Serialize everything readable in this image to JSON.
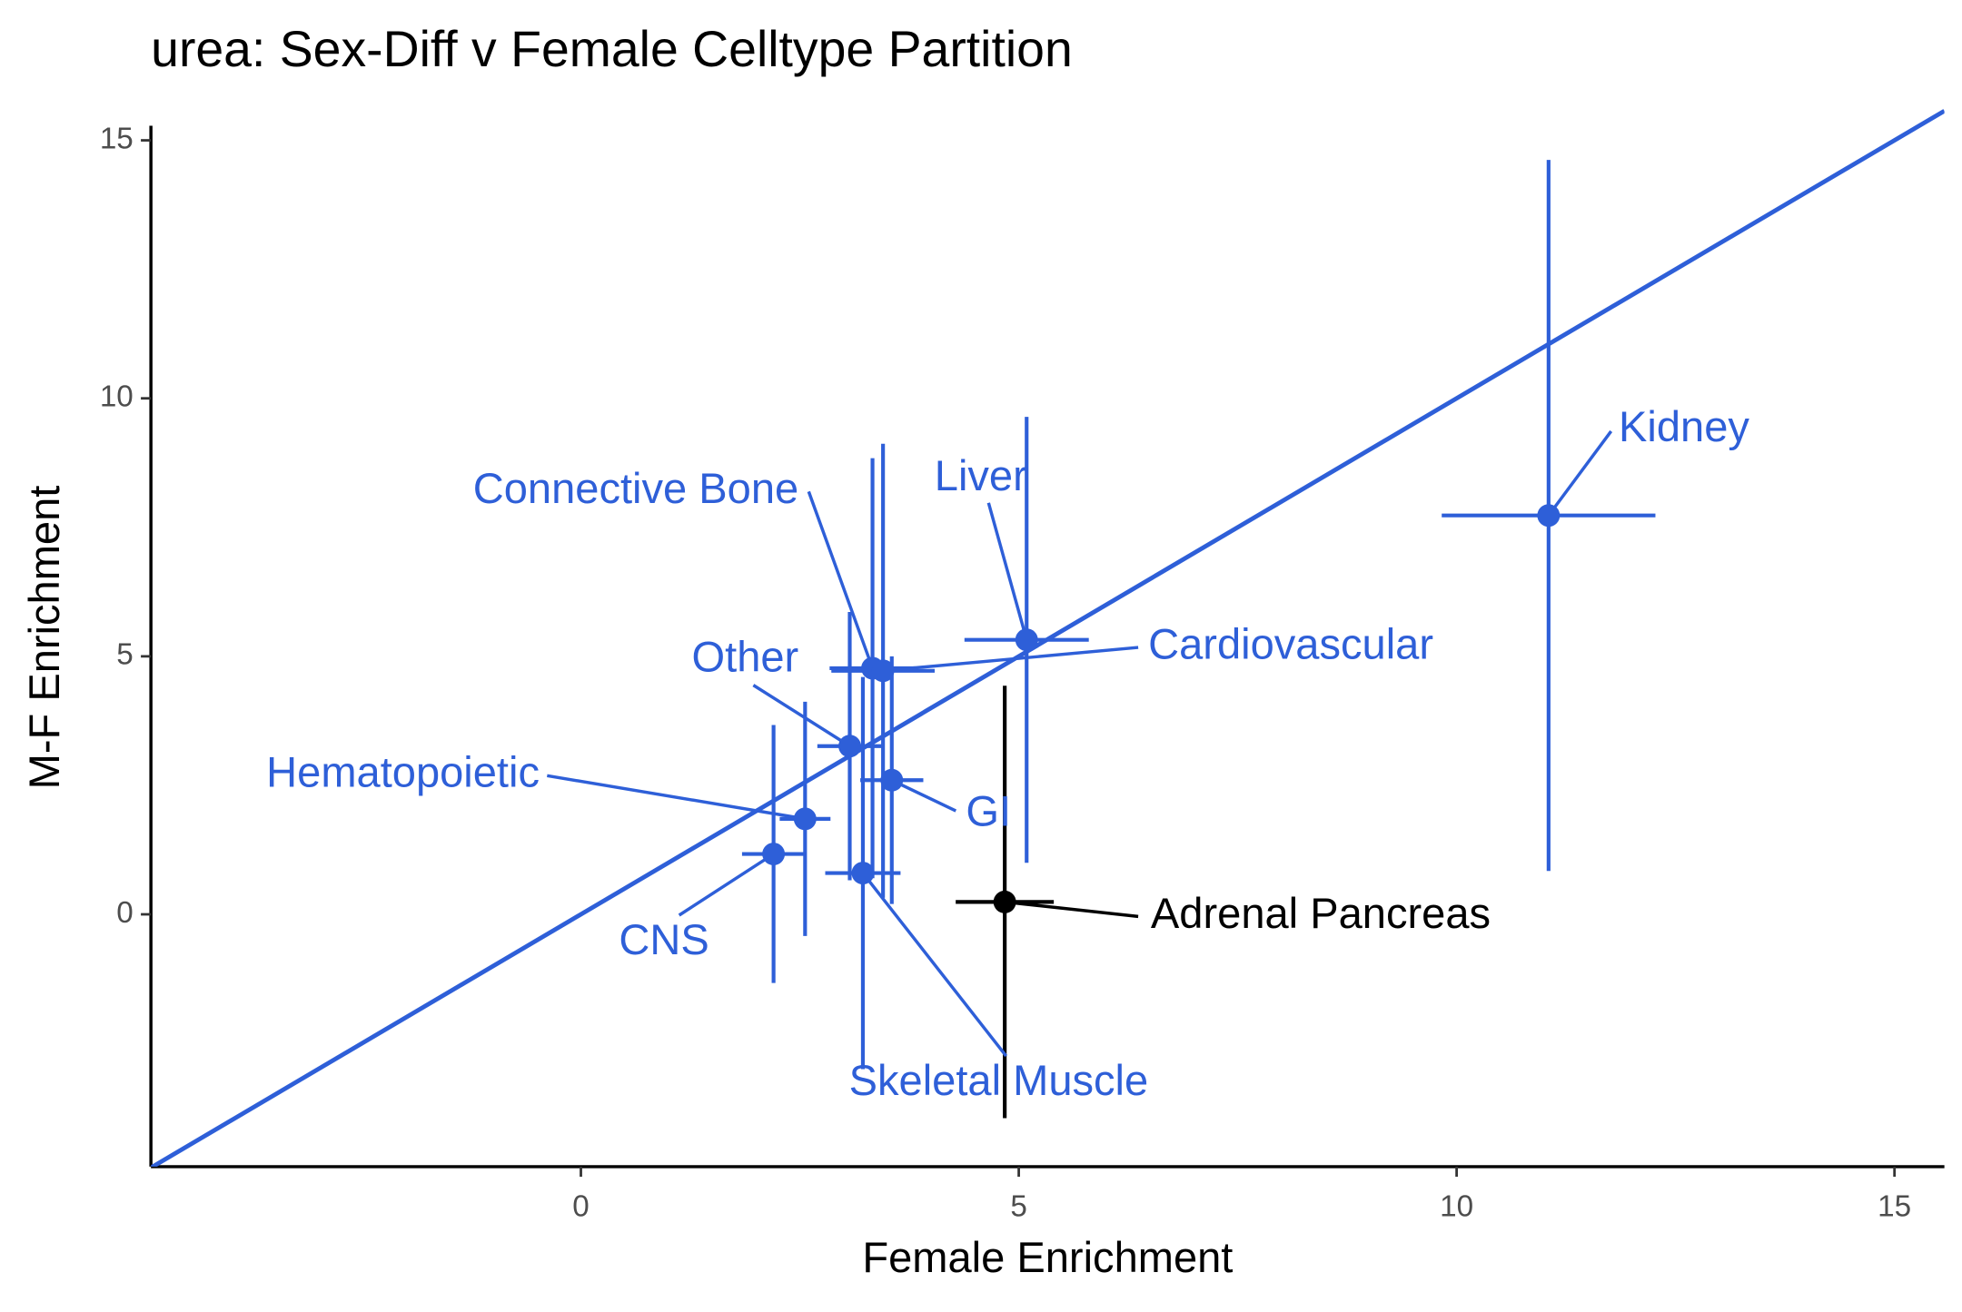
{
  "chart_data": {
    "type": "scatter",
    "title": "urea: Sex-Diff v Female Celltype Partition",
    "x_label": "Female Enrichment",
    "y_label": "M-F Enrichment",
    "xlim": [
      -4.91,
      15.57
    ],
    "ylim": [
      -4.89,
      15.6
    ],
    "xticks": [
      0,
      5,
      10,
      15
    ],
    "yticks": [
      0,
      5,
      10,
      15
    ],
    "reference_line": {
      "slope": 1,
      "intercept": 0,
      "color": "#2e5fd8"
    },
    "points": [
      {
        "label": "Kidney",
        "x": 11.05,
        "y": 7.73,
        "xerr": 1.22,
        "yerr": 6.89,
        "color": "#2e5fd8"
      },
      {
        "label": "Liver",
        "x": 5.09,
        "y": 5.32,
        "xerr": 0.71,
        "yerr": 4.32,
        "color": "#2e5fd8"
      },
      {
        "label": "Connective Bone",
        "x": 3.33,
        "y": 4.77,
        "xerr": 0.49,
        "yerr": 4.07,
        "color": "#2e5fd8"
      },
      {
        "label": "Cardiovascular",
        "x": 3.45,
        "y": 4.72,
        "xerr": 0.59,
        "yerr": 4.4,
        "color": "#2e5fd8"
      },
      {
        "label": "Other",
        "x": 3.07,
        "y": 3.26,
        "xerr": 0.37,
        "yerr": 2.6,
        "color": "#2e5fd8"
      },
      {
        "label": "GI",
        "x": 3.55,
        "y": 2.6,
        "xerr": 0.36,
        "yerr": 2.4,
        "color": "#2e5fd8"
      },
      {
        "label": "Hematopoietic",
        "x": 2.56,
        "y": 1.85,
        "xerr": 0.29,
        "yerr": 2.27,
        "color": "#2e5fd8"
      },
      {
        "label": "CNS",
        "x": 2.2,
        "y": 1.17,
        "xerr": 0.36,
        "yerr": 2.5,
        "color": "#2e5fd8"
      },
      {
        "label": "Skeletal Muscle",
        "x": 3.22,
        "y": 0.8,
        "xerr": 0.43,
        "yerr": 3.8,
        "color": "#2e5fd8"
      },
      {
        "label": "Adrenal Pancreas",
        "x": 4.84,
        "y": 0.24,
        "xerr": 0.56,
        "yerr": 4.19,
        "color": "#000000"
      }
    ]
  }
}
